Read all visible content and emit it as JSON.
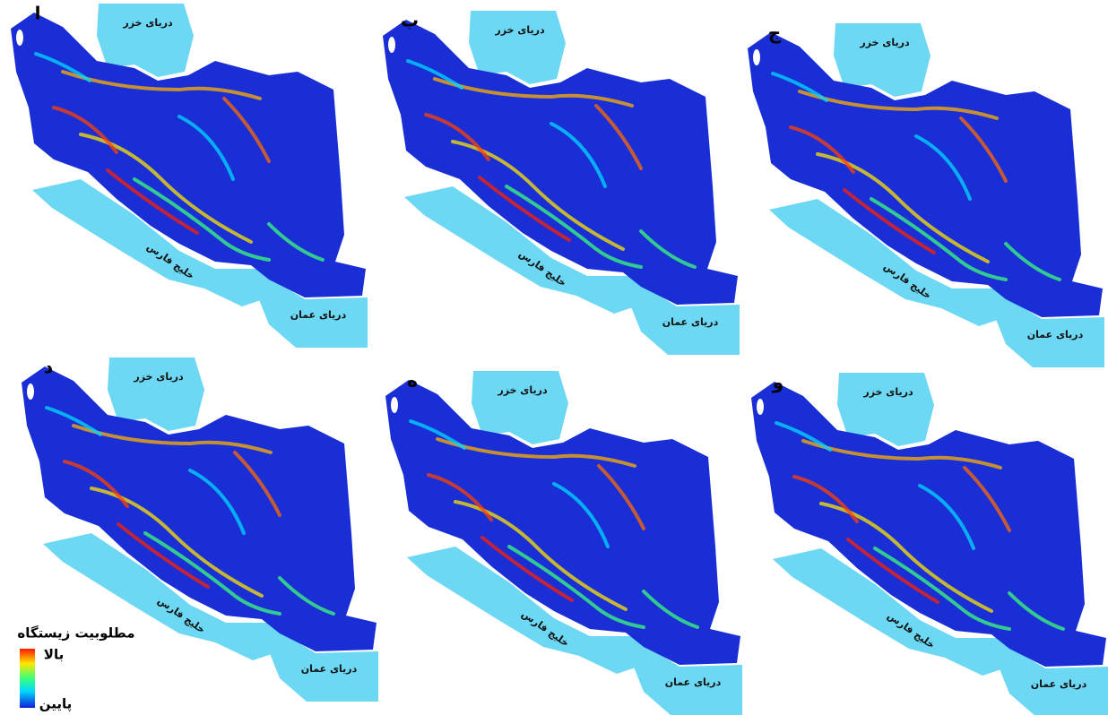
{
  "panels": [
    {
      "label": "ا",
      "caspian": "دریای خزر",
      "gulf": "خلیج فارس",
      "oman": "دریای عمان"
    },
    {
      "label": "ب",
      "caspian": "دریای خزر",
      "gulf": "خلیج فارس",
      "oman": "دریای عمان"
    },
    {
      "label": "ج",
      "caspian": "دریای خزر",
      "gulf": "خلیج فارس",
      "oman": "دریای عمان"
    },
    {
      "label": "د",
      "caspian": "دریای خزر",
      "gulf": "خلیج فارس",
      "oman": "دریای عمان"
    },
    {
      "label": "ه",
      "caspian": "دریای خزر",
      "gulf": "خلیج فارس",
      "oman": "دریای عمان"
    },
    {
      "label": "و",
      "caspian": "دریای خزر",
      "gulf": "خلیج فارس",
      "oman": "دریای عمان"
    }
  ],
  "legend": {
    "title": "مطلوبیت زیستگاه",
    "high": "بالا",
    "low": "پایین"
  }
}
